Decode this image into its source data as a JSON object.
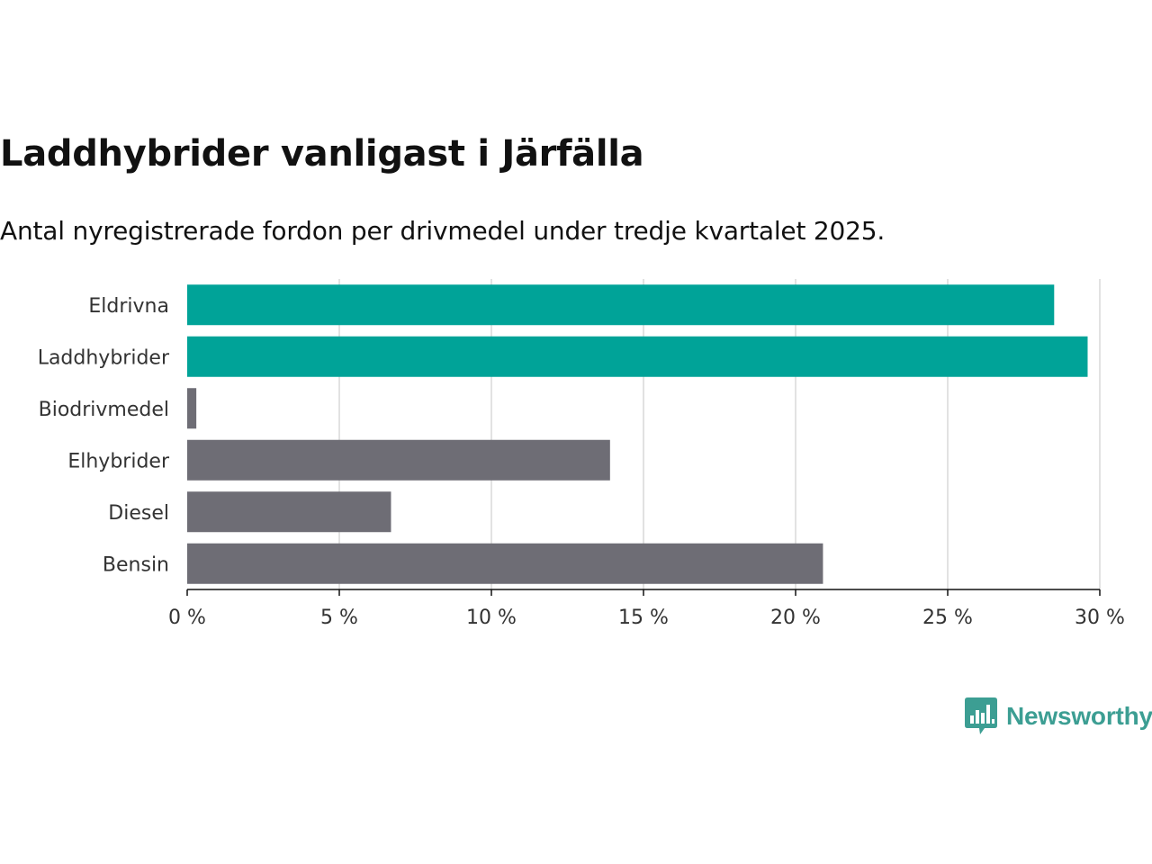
{
  "title": "Laddhybrider vanligast i Järfälla",
  "subtitle": "Antal nyregistrerade fordon per drivmedel under tredje kvartalet 2025.",
  "brand": {
    "name": "Newsworthy",
    "icon": "bar-chart-speech-bubble-icon",
    "color": "#3c9e93"
  },
  "colors": {
    "highlight": "#00a398",
    "default": "#6e6d75",
    "grid": "#d9d9d9",
    "axis": "#111111",
    "text": "#333333"
  },
  "chart_data": {
    "type": "bar",
    "orientation": "horizontal",
    "categories": [
      "Eldrivna",
      "Laddhybrider",
      "Biodrivmedel",
      "Elhybrider",
      "Diesel",
      "Bensin"
    ],
    "values": [
      28.5,
      29.6,
      0.3,
      13.9,
      6.7,
      20.9
    ],
    "highlighted": [
      true,
      true,
      false,
      false,
      false,
      false
    ],
    "unit": "%",
    "xlim": [
      0,
      30
    ],
    "xticks": [
      0,
      5,
      10,
      15,
      20,
      25,
      30
    ],
    "xtick_labels": [
      "0 %",
      "5 %",
      "10 %",
      "15 %",
      "20 %",
      "25 %",
      "30 %"
    ],
    "grid": true,
    "title": "Laddhybrider vanligast i Järfälla",
    "xlabel": "",
    "ylabel": ""
  }
}
